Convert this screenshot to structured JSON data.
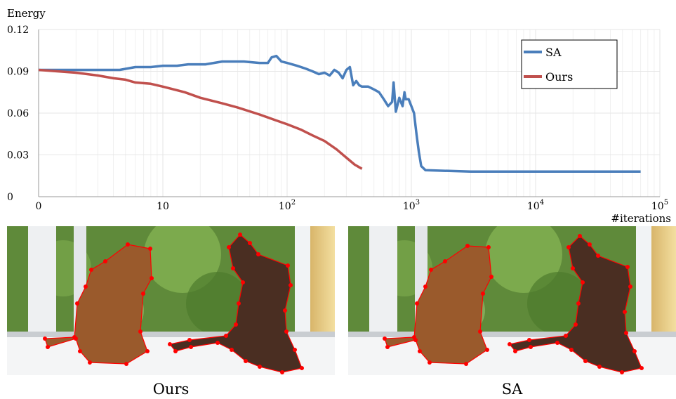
{
  "chart_data": {
    "type": "line",
    "ylabel": "Energy",
    "xlabel": "#iterations",
    "x_scale": "log",
    "xlim": [
      1,
      100000
    ],
    "ylim": [
      0,
      0.12
    ],
    "y_ticks": [
      "0",
      "0.03",
      "0.06",
      "0.09",
      "0.12"
    ],
    "x_ticks": [
      {
        "value": 1,
        "label": "0"
      },
      {
        "value": 10,
        "label": "10"
      },
      {
        "value": 100,
        "label": "10",
        "exp": "2"
      },
      {
        "value": 1000,
        "label": "10",
        "exp": "3"
      },
      {
        "value": 10000,
        "label": "10",
        "exp": "4"
      },
      {
        "value": 100000,
        "label": "10",
        "exp": "5"
      }
    ],
    "grid": true,
    "legend_position": "top-right",
    "series": [
      {
        "name": "SA",
        "color": "#4a7ebb",
        "points": [
          [
            1,
            0.091
          ],
          [
            2,
            0.091
          ],
          [
            3,
            0.091
          ],
          [
            4.5,
            0.091
          ],
          [
            6,
            0.093
          ],
          [
            8,
            0.093
          ],
          [
            10,
            0.094
          ],
          [
            13,
            0.094
          ],
          [
            16,
            0.095
          ],
          [
            22,
            0.095
          ],
          [
            30,
            0.097
          ],
          [
            45,
            0.097
          ],
          [
            60,
            0.096
          ],
          [
            70,
            0.096
          ],
          [
            75,
            0.1
          ],
          [
            82,
            0.101
          ],
          [
            90,
            0.097
          ],
          [
            100,
            0.096
          ],
          [
            120,
            0.094
          ],
          [
            140,
            0.092
          ],
          [
            160,
            0.09
          ],
          [
            180,
            0.088
          ],
          [
            200,
            0.089
          ],
          [
            220,
            0.087
          ],
          [
            240,
            0.091
          ],
          [
            260,
            0.089
          ],
          [
            280,
            0.085
          ],
          [
            300,
            0.091
          ],
          [
            320,
            0.093
          ],
          [
            340,
            0.08
          ],
          [
            360,
            0.083
          ],
          [
            380,
            0.08
          ],
          [
            400,
            0.079
          ],
          [
            450,
            0.079
          ],
          [
            500,
            0.077
          ],
          [
            550,
            0.075
          ],
          [
            600,
            0.07
          ],
          [
            650,
            0.065
          ],
          [
            700,
            0.068
          ],
          [
            720,
            0.082
          ],
          [
            750,
            0.061
          ],
          [
            800,
            0.071
          ],
          [
            850,
            0.065
          ],
          [
            880,
            0.075
          ],
          [
            900,
            0.07
          ],
          [
            950,
            0.07
          ],
          [
            1000,
            0.065
          ],
          [
            1050,
            0.06
          ],
          [
            1100,
            0.045
          ],
          [
            1150,
            0.032
          ],
          [
            1200,
            0.022
          ],
          [
            1300,
            0.019
          ],
          [
            2000,
            0.0185
          ],
          [
            3000,
            0.018
          ],
          [
            10000,
            0.018
          ],
          [
            30000,
            0.018
          ],
          [
            70000,
            0.018
          ]
        ]
      },
      {
        "name": "Ours",
        "color": "#c0504d",
        "points": [
          [
            1,
            0.091
          ],
          [
            2,
            0.089
          ],
          [
            3,
            0.087
          ],
          [
            4,
            0.085
          ],
          [
            5,
            0.084
          ],
          [
            6,
            0.082
          ],
          [
            8,
            0.081
          ],
          [
            10,
            0.079
          ],
          [
            15,
            0.075
          ],
          [
            20,
            0.071
          ],
          [
            30,
            0.067
          ],
          [
            40,
            0.064
          ],
          [
            60,
            0.059
          ],
          [
            80,
            0.055
          ],
          [
            100,
            0.052
          ],
          [
            130,
            0.048
          ],
          [
            160,
            0.044
          ],
          [
            200,
            0.04
          ],
          [
            250,
            0.034
          ],
          [
            300,
            0.028
          ],
          [
            350,
            0.023
          ],
          [
            400,
            0.02
          ]
        ]
      }
    ]
  },
  "captions": {
    "left": "Ours",
    "right": "SA"
  },
  "colors": {
    "grid": "#e6e6e6",
    "axis": "#9a9a9a",
    "contour": "#ff0000"
  }
}
